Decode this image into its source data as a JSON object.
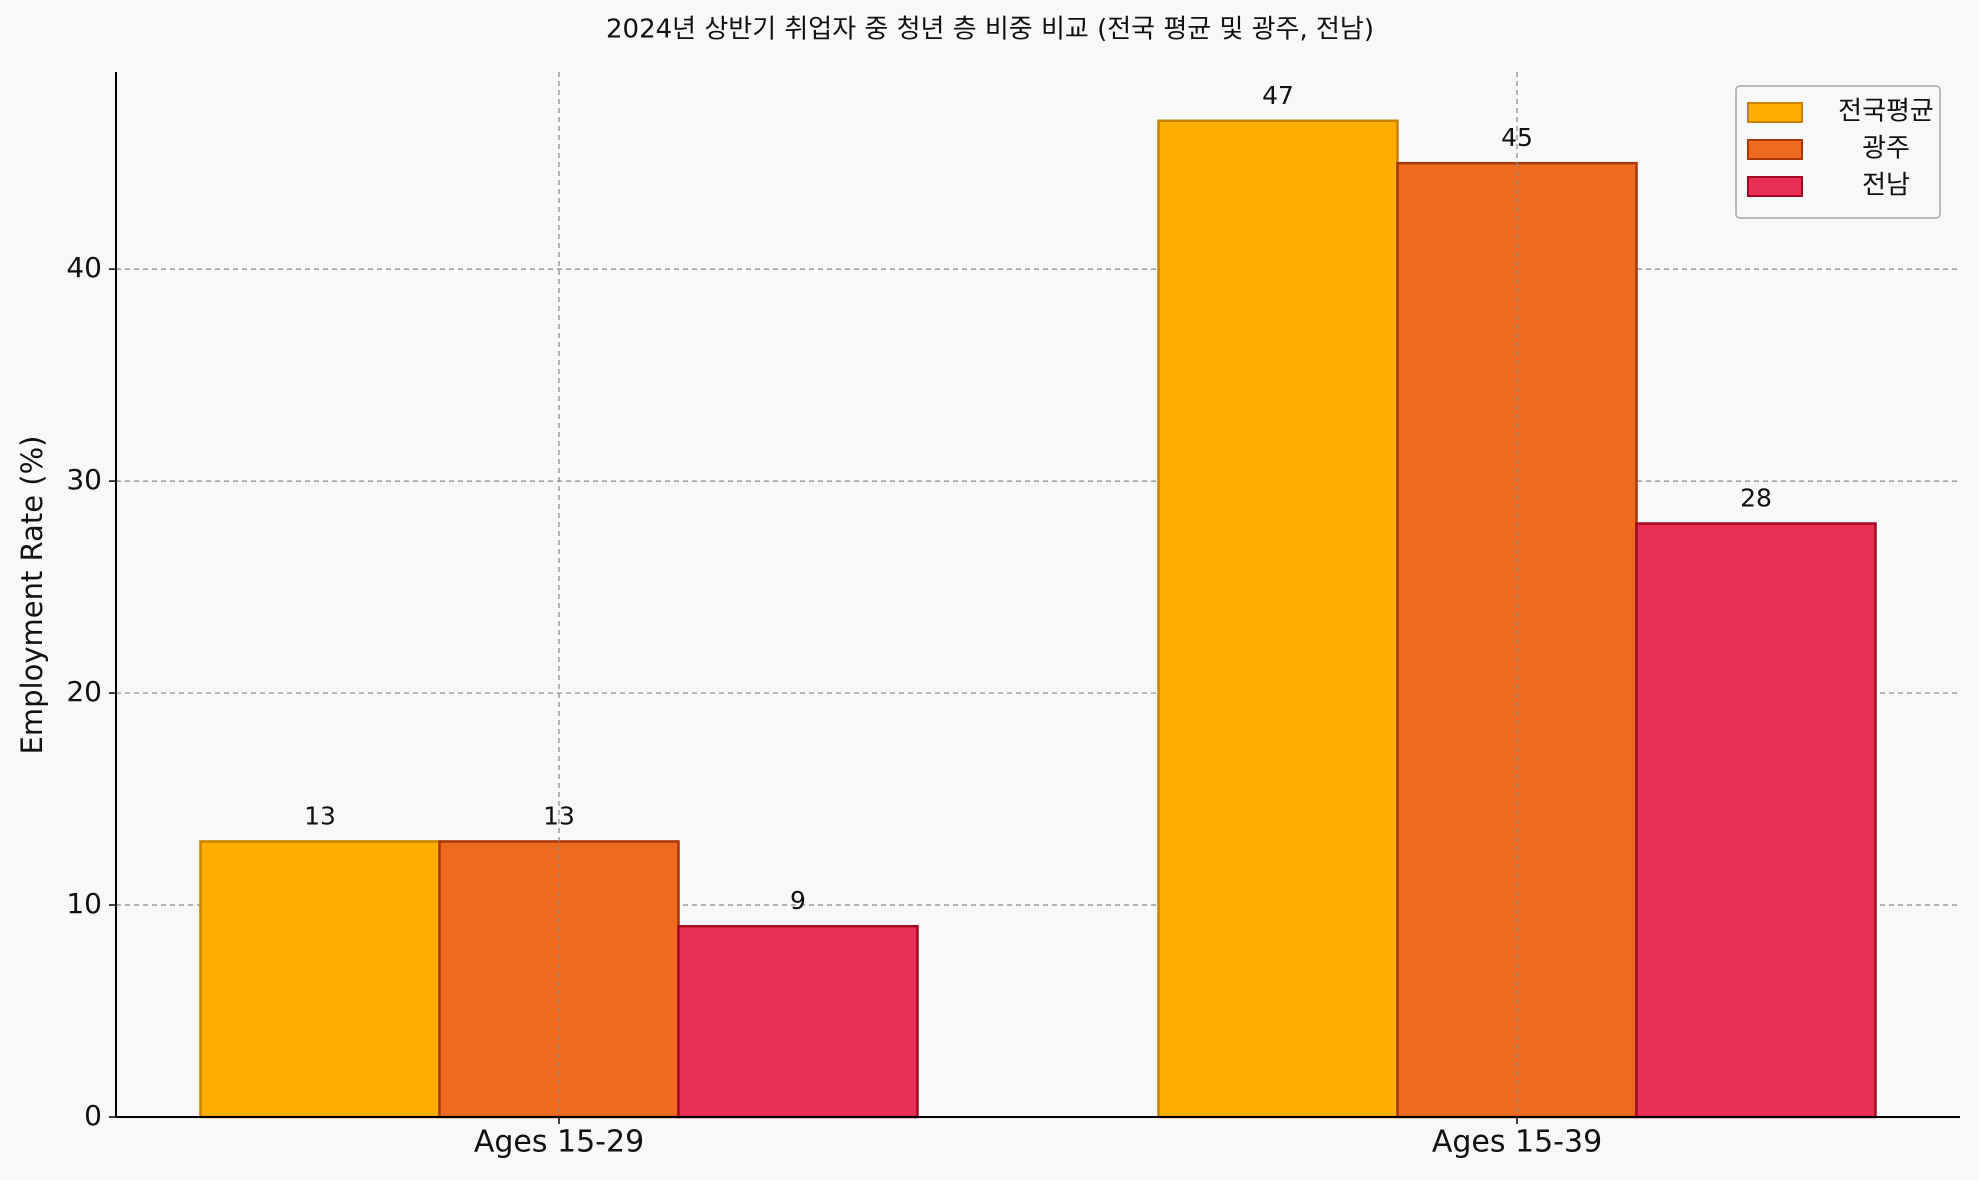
{
  "chart_data": {
    "type": "bar",
    "title": "2024년 상반기 취업자 중 청년 층 비중 비교 (전국 평균 및 광주, 전남)",
    "y_label": "Employment Rate (%)",
    "categories": [
      "Ages 15-29",
      "Ages 15-39"
    ],
    "series": [
      {
        "name": "전국평균",
        "color": "#FFAE00",
        "edge": "#C88200",
        "values": [
          13,
          47
        ]
      },
      {
        "name": "광주",
        "color": "#EE6A1F",
        "edge": "#A8380A",
        "values": [
          13,
          45
        ]
      },
      {
        "name": "전남",
        "color": "#E92F52",
        "edge": "#A00A25",
        "values": [
          9,
          28
        ]
      }
    ],
    "ylim": [
      0,
      49.3
    ],
    "yticks": [
      0,
      10,
      20,
      30,
      40
    ],
    "grid": true,
    "legend": "upper right"
  }
}
